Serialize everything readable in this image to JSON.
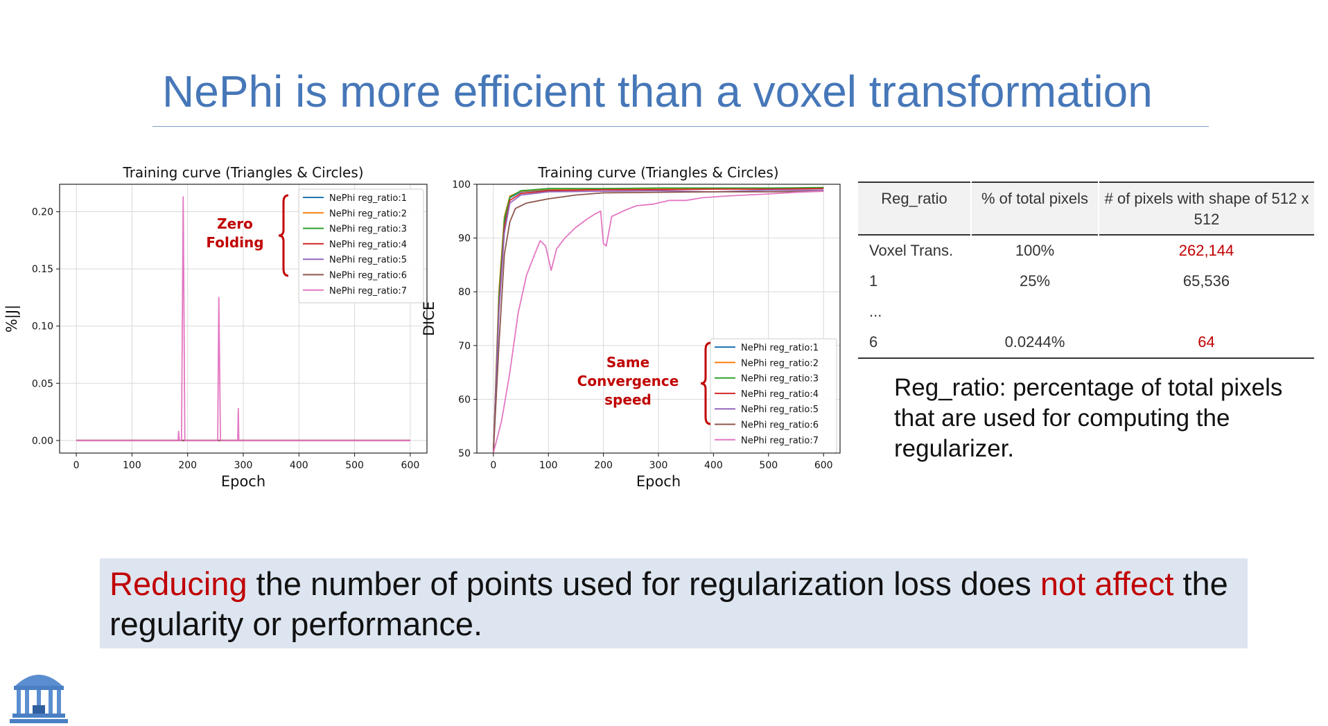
{
  "slide": {
    "title": "NePhi is more efficient than a voxel transformation",
    "reg_description": "Reg_ratio: percentage of total pixels that are used for computing the regularizer.",
    "banner": {
      "part1": "Reducing",
      "part2": " the number of points used for regularization loss does ",
      "part3": "not affect",
      "part4": " the regularity or performance."
    }
  },
  "table": {
    "headers": [
      "Reg_ratio",
      "% of total pixels",
      "# of pixels with shape of 512 x 512"
    ],
    "rows": [
      {
        "ratio": "Voxel Trans.",
        "percent": "100%",
        "pixels": "262,144",
        "highlight": true
      },
      {
        "ratio": "1",
        "percent": "25%",
        "pixels": "65,536",
        "highlight": false
      },
      {
        "ratio": "...",
        "percent": "",
        "pixels": "",
        "highlight": false
      },
      {
        "ratio": "6",
        "percent": "0.0244%",
        "pixels": "64",
        "highlight": true
      }
    ],
    "highlight_color": "#c00000"
  },
  "annotations": {
    "left": [
      "Zero",
      "Folding"
    ],
    "right": [
      "Same",
      "Convergence",
      "speed"
    ],
    "color": "#c00000"
  },
  "chart_data": [
    {
      "type": "line",
      "title": "Training curve (Triangles & Circles)",
      "xlabel": "Epoch",
      "ylabel": "%|J|",
      "xlim": [
        -30,
        630
      ],
      "ylim": [
        -0.011,
        0.224
      ],
      "xticks": [
        0,
        100,
        200,
        300,
        400,
        500,
        600
      ],
      "yticks": [
        0.0,
        0.05,
        0.1,
        0.15,
        0.2
      ],
      "ytick_labels": [
        "0.00",
        "0.05",
        "0.10",
        "0.15",
        "0.20"
      ],
      "grid": true,
      "legend_position": "upper right",
      "series": [
        {
          "name": "NePhi reg_ratio:1",
          "color": "#1f77b4",
          "points": [
            [
              0,
              0
            ],
            [
              600,
              0
            ]
          ]
        },
        {
          "name": "NePhi reg_ratio:2",
          "color": "#ff7f0e",
          "points": [
            [
              0,
              0
            ],
            [
              600,
              0
            ]
          ]
        },
        {
          "name": "NePhi reg_ratio:3",
          "color": "#2ca02c",
          "points": [
            [
              0,
              0
            ],
            [
              600,
              0
            ]
          ]
        },
        {
          "name": "NePhi reg_ratio:4",
          "color": "#d62728",
          "points": [
            [
              0,
              0
            ],
            [
              600,
              0
            ]
          ]
        },
        {
          "name": "NePhi reg_ratio:5",
          "color": "#9467bd",
          "points": [
            [
              0,
              0
            ],
            [
              600,
              0
            ]
          ]
        },
        {
          "name": "NePhi reg_ratio:6",
          "color": "#8c564b",
          "points": [
            [
              0,
              0
            ],
            [
              600,
              0
            ]
          ]
        },
        {
          "name": "NePhi reg_ratio:7",
          "color": "#e377c2",
          "points": [
            [
              0,
              0
            ],
            [
              183,
              0
            ],
            [
              184,
              0.008
            ],
            [
              185,
              0
            ],
            [
              189,
              0
            ],
            [
              192,
              0.213
            ],
            [
              195,
              0
            ],
            [
              254,
              0
            ],
            [
              256,
              0.125
            ],
            [
              259,
              0
            ],
            [
              290,
              0
            ],
            [
              291,
              0.028
            ],
            [
              292,
              0
            ],
            [
              600,
              0
            ]
          ]
        }
      ]
    },
    {
      "type": "line",
      "title": "Training curve (Triangles & Circles)",
      "xlabel": "Epoch",
      "ylabel": "DICE",
      "xlim": [
        -30,
        630
      ],
      "ylim": [
        50,
        100
      ],
      "xticks": [
        0,
        100,
        200,
        300,
        400,
        500,
        600
      ],
      "yticks": [
        50,
        60,
        70,
        80,
        90,
        100
      ],
      "ytick_labels": [
        "50",
        "60",
        "70",
        "80",
        "90",
        "100"
      ],
      "grid": true,
      "legend_position": "lower right",
      "series": [
        {
          "name": "NePhi reg_ratio:1",
          "color": "#1f77b4",
          "points": [
            [
              0,
              50
            ],
            [
              10,
              78
            ],
            [
              20,
              93
            ],
            [
              30,
              97.5
            ],
            [
              50,
              98.6
            ],
            [
              100,
              99.0
            ],
            [
              200,
              99.1
            ],
            [
              300,
              99.2
            ],
            [
              400,
              99.2
            ],
            [
              500,
              99.2
            ],
            [
              600,
              99.3
            ]
          ]
        },
        {
          "name": "NePhi reg_ratio:2",
          "color": "#ff7f0e",
          "points": [
            [
              0,
              50
            ],
            [
              10,
              80
            ],
            [
              20,
              94
            ],
            [
              30,
              97.8
            ],
            [
              50,
              98.7
            ],
            [
              100,
              99.1
            ],
            [
              200,
              99.1
            ],
            [
              300,
              99.2
            ],
            [
              400,
              99.2
            ],
            [
              500,
              99.3
            ],
            [
              600,
              99.3
            ]
          ]
        },
        {
          "name": "NePhi reg_ratio:3",
          "color": "#2ca02c",
          "points": [
            [
              0,
              50
            ],
            [
              10,
              79
            ],
            [
              20,
              93.5
            ],
            [
              30,
              97.6
            ],
            [
              50,
              98.8
            ],
            [
              100,
              99.2
            ],
            [
              200,
              99.2
            ],
            [
              300,
              99.3
            ],
            [
              400,
              99.3
            ],
            [
              500,
              99.3
            ],
            [
              600,
              99.4
            ]
          ]
        },
        {
          "name": "NePhi reg_ratio:4",
          "color": "#d62728",
          "points": [
            [
              0,
              50
            ],
            [
              10,
              77
            ],
            [
              20,
              92
            ],
            [
              30,
              97.0
            ],
            [
              50,
              98.3
            ],
            [
              100,
              98.8
            ],
            [
              200,
              99.0
            ],
            [
              300,
              99.0
            ],
            [
              400,
              99.1
            ],
            [
              500,
              99.1
            ],
            [
              600,
              99.2
            ]
          ]
        },
        {
          "name": "NePhi reg_ratio:5",
          "color": "#9467bd",
          "points": [
            [
              0,
              50
            ],
            [
              10,
              76
            ],
            [
              20,
              91
            ],
            [
              30,
              96.5
            ],
            [
              50,
              98.0
            ],
            [
              100,
              98.6
            ],
            [
              200,
              98.7
            ],
            [
              300,
              98.8
            ],
            [
              400,
              98.6
            ],
            [
              500,
              98.9
            ],
            [
              600,
              98.9
            ]
          ]
        },
        {
          "name": "NePhi reg_ratio:6",
          "color": "#8c564b",
          "points": [
            [
              0,
              50
            ],
            [
              10,
              70
            ],
            [
              20,
              87
            ],
            [
              30,
              93
            ],
            [
              40,
              95.5
            ],
            [
              60,
              96.5
            ],
            [
              100,
              97.3
            ],
            [
              150,
              98.0
            ],
            [
              200,
              98.4
            ],
            [
              300,
              98.5
            ],
            [
              400,
              98.6
            ],
            [
              500,
              98.6
            ],
            [
              600,
              98.7
            ]
          ]
        },
        {
          "name": "NePhi reg_ratio:7",
          "color": "#e377c2",
          "points": [
            [
              0,
              50
            ],
            [
              15,
              56
            ],
            [
              30,
              65
            ],
            [
              45,
              76
            ],
            [
              60,
              83
            ],
            [
              75,
              87
            ],
            [
              85,
              89.5
            ],
            [
              95,
              88.5
            ],
            [
              105,
              84
            ],
            [
              115,
              88
            ],
            [
              130,
              90
            ],
            [
              150,
              92
            ],
            [
              170,
              93.5
            ],
            [
              185,
              94.5
            ],
            [
              195,
              95
            ],
            [
              200,
              89
            ],
            [
              205,
              88.5
            ],
            [
              215,
              94
            ],
            [
              240,
              95.2
            ],
            [
              260,
              96
            ],
            [
              290,
              96.3
            ],
            [
              320,
              97
            ],
            [
              350,
              97
            ],
            [
              380,
              97.5
            ],
            [
              420,
              97.8
            ],
            [
              460,
              98
            ],
            [
              500,
              98.2
            ],
            [
              550,
              98.5
            ],
            [
              600,
              98.7
            ]
          ]
        }
      ]
    }
  ]
}
